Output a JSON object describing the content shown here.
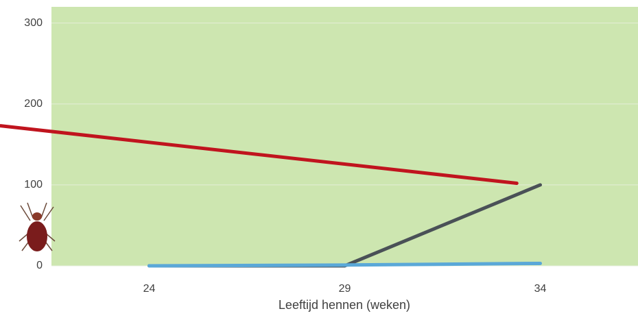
{
  "chart_data": {
    "type": "line",
    "x_label": "Leeftijd hennen (weken)",
    "xlim": [
      21.5,
      36.5
    ],
    "xticks": [
      24,
      29,
      34
    ],
    "ylim": [
      0,
      320
    ],
    "yticks": [
      0,
      100,
      200,
      300
    ],
    "grid": true,
    "plot_color": "#cde6b0",
    "series": [
      {
        "color": "#4a5157",
        "x": [
          24,
          29,
          34
        ],
        "values": [
          0,
          0,
          100
        ]
      },
      {
        "color": "#5aa8d8",
        "x": [
          24,
          29,
          34
        ],
        "values": [
          0,
          1,
          3
        ]
      },
      {
        "color": "#c0141e",
        "x": [
          20.2,
          33.4
        ],
        "values": [
          173,
          102
        ]
      }
    ]
  }
}
